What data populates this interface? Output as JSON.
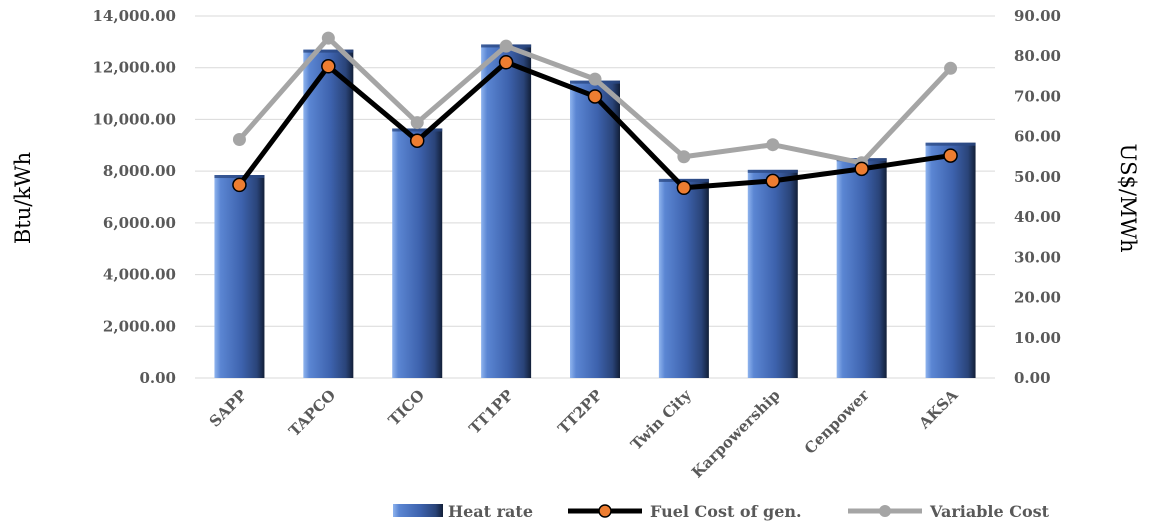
{
  "chart_data": {
    "type": "bar",
    "categories": [
      "SAPP",
      "TAPCO",
      "TICO",
      "TT1PP",
      "TT2PP",
      "Twin City",
      "Karpowership",
      "Cenpower",
      "AKSA"
    ],
    "ylabel": "Btu/kWh",
    "y2label": "US$/MWh",
    "ylim": [
      0,
      14000
    ],
    "y2lim": [
      0,
      90
    ],
    "yticks": [
      "0.00",
      "2,000.00",
      "4,000.00",
      "6,000.00",
      "8,000.00",
      "10,000.00",
      "12,000.00",
      "14,000.00"
    ],
    "y2ticks": [
      "0.00",
      "10.00",
      "20.00",
      "30.00",
      "40.00",
      "50.00",
      "60.00",
      "70.00",
      "80.00",
      "90.00"
    ],
    "grid": true,
    "legend_position": "bottom-right",
    "series": [
      {
        "name": "Heat rate",
        "type": "bar",
        "axis": "left",
        "color": "#4472C4",
        "values": [
          7850,
          12700,
          9650,
          12900,
          11500,
          7700,
          8050,
          8500,
          9100
        ]
      },
      {
        "name": "Fuel Cost of gen.",
        "type": "line",
        "axis": "right",
        "color": "#000000",
        "marker_color": "#ED7D31",
        "values": [
          48.0,
          77.5,
          59.0,
          78.5,
          70.0,
          47.3,
          49.0,
          52.0,
          55.3
        ]
      },
      {
        "name": "Variable Cost",
        "type": "line",
        "axis": "right",
        "color": "#A5A5A5",
        "marker_color": "#A5A5A5",
        "values": [
          59.3,
          84.5,
          63.5,
          82.5,
          74.3,
          55.0,
          58.0,
          53.5,
          77.0
        ]
      }
    ]
  }
}
